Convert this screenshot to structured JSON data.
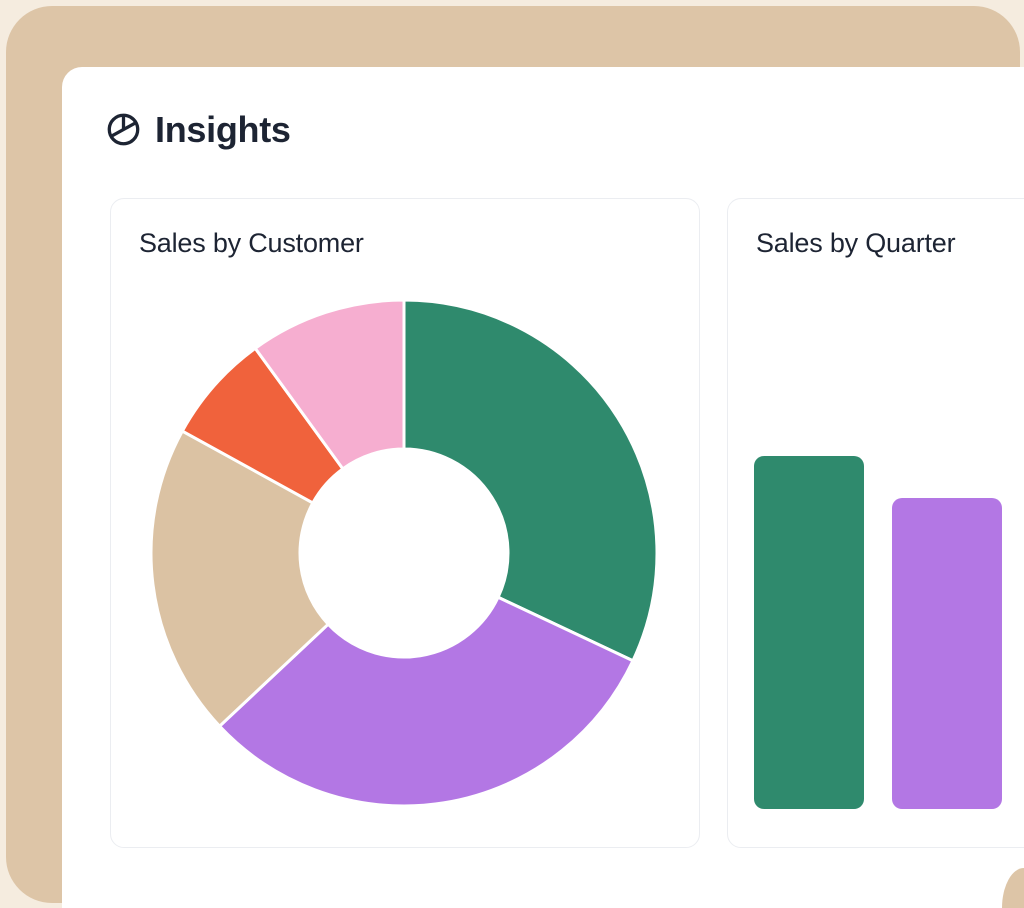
{
  "page": {
    "background_color": "#f5ecdf",
    "frame_color": "#ddc5a7",
    "panel_color": "#ffffff",
    "card_border_color": "#ebedf1",
    "text_color": "#1d2433"
  },
  "header": {
    "title": "Insights",
    "icon": "pie-chart-icon"
  },
  "cards": {
    "sales_by_customer": {
      "title": "Sales by Customer"
    },
    "sales_by_quarter": {
      "title": "Sales by Quarter"
    }
  },
  "chart_data": [
    {
      "type": "pie",
      "variant": "donut",
      "title": "Sales by Customer",
      "segments": [
        {
          "value": 32,
          "color": "#2f8a6d"
        },
        {
          "value": 31,
          "color": "#b377e4"
        },
        {
          "value": 20,
          "color": "#dbc2a3"
        },
        {
          "value": 7,
          "color": "#f0623c"
        },
        {
          "value": 10,
          "color": "#f6aed0"
        }
      ],
      "value_unit": "percent-of-circle",
      "start_angle_deg": 0,
      "direction": "clockwise",
      "inner_radius_ratio": 0.41,
      "separator_color": "#ffffff",
      "legend": "none",
      "data_labels": "none"
    },
    {
      "type": "bar",
      "title": "Sales by Quarter",
      "bars": [
        {
          "value": 100,
          "color": "#2f8a6d"
        },
        {
          "value": 88,
          "color": "#b377e4"
        }
      ],
      "value_unit": "relative-height",
      "axes": "none",
      "gridlines": "off",
      "legend": "none",
      "note_visible_bars_only": true
    }
  ]
}
